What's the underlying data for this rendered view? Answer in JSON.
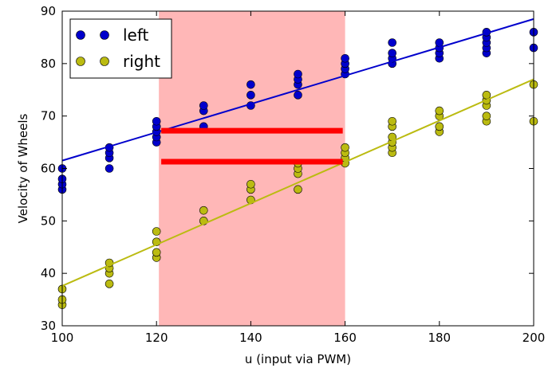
{
  "chart_data": {
    "type": "scatter",
    "xlabel": "u (input via PWM)",
    "ylabel": "Velocity of Wheels",
    "xlim": [
      100,
      200
    ],
    "ylim": [
      30,
      90
    ],
    "xticks": [
      100,
      120,
      140,
      160,
      180,
      200
    ],
    "yticks": [
      30,
      40,
      50,
      60,
      70,
      80,
      90
    ],
    "grid": false,
    "legend": {
      "placement": "top-left"
    },
    "shaded_region": {
      "x": [
        120.5,
        160
      ],
      "color": "#ff9999"
    },
    "horizontal_segments": [
      {
        "x": [
          121,
          159.5
        ],
        "y": 67.2,
        "color": "#ff0000"
      },
      {
        "x": [
          121,
          159.5
        ],
        "y": 61.3,
        "color": "#ff0000"
      }
    ],
    "series": [
      {
        "name": "left",
        "color": "#0000cc",
        "points": [
          [
            100,
            56
          ],
          [
            100,
            57
          ],
          [
            100,
            58
          ],
          [
            100,
            60
          ],
          [
            110,
            60
          ],
          [
            110,
            62
          ],
          [
            110,
            63
          ],
          [
            110,
            64
          ],
          [
            120,
            65
          ],
          [
            120,
            66
          ],
          [
            120,
            67
          ],
          [
            120,
            68
          ],
          [
            120,
            69
          ],
          [
            130,
            68
          ],
          [
            130,
            71
          ],
          [
            130,
            72
          ],
          [
            140,
            72
          ],
          [
            140,
            74
          ],
          [
            140,
            76
          ],
          [
            150,
            74
          ],
          [
            150,
            76
          ],
          [
            150,
            77
          ],
          [
            150,
            78
          ],
          [
            160,
            78
          ],
          [
            160,
            79
          ],
          [
            160,
            80
          ],
          [
            160,
            81
          ],
          [
            170,
            80
          ],
          [
            170,
            81
          ],
          [
            170,
            82
          ],
          [
            170,
            84
          ],
          [
            180,
            81
          ],
          [
            180,
            82
          ],
          [
            180,
            83
          ],
          [
            180,
            84
          ],
          [
            190,
            82
          ],
          [
            190,
            83
          ],
          [
            190,
            84
          ],
          [
            190,
            85
          ],
          [
            190,
            86
          ],
          [
            200,
            83
          ],
          [
            200,
            86
          ]
        ],
        "fit": {
          "slope": 0.27,
          "intercept": 34.5
        }
      },
      {
        "name": "right",
        "color": "#bbbb11",
        "points": [
          [
            100,
            34
          ],
          [
            100,
            35
          ],
          [
            100,
            37
          ],
          [
            110,
            38
          ],
          [
            110,
            40
          ],
          [
            110,
            41
          ],
          [
            110,
            42
          ],
          [
            120,
            43
          ],
          [
            120,
            44
          ],
          [
            120,
            46
          ],
          [
            120,
            48
          ],
          [
            130,
            50
          ],
          [
            130,
            52
          ],
          [
            140,
            54
          ],
          [
            140,
            56
          ],
          [
            140,
            57
          ],
          [
            150,
            56
          ],
          [
            150,
            59
          ],
          [
            150,
            60
          ],
          [
            150,
            61
          ],
          [
            160,
            61
          ],
          [
            160,
            62
          ],
          [
            160,
            63
          ],
          [
            160,
            64
          ],
          [
            170,
            63
          ],
          [
            170,
            64
          ],
          [
            170,
            65
          ],
          [
            170,
            66
          ],
          [
            170,
            68
          ],
          [
            170,
            69
          ],
          [
            180,
            67
          ],
          [
            180,
            68
          ],
          [
            180,
            70
          ],
          [
            180,
            71
          ],
          [
            190,
            69
          ],
          [
            190,
            70
          ],
          [
            190,
            72
          ],
          [
            190,
            73
          ],
          [
            190,
            74
          ],
          [
            200,
            69
          ],
          [
            200,
            76
          ]
        ],
        "fit": {
          "slope": 0.394,
          "intercept": -1.8
        }
      }
    ]
  }
}
